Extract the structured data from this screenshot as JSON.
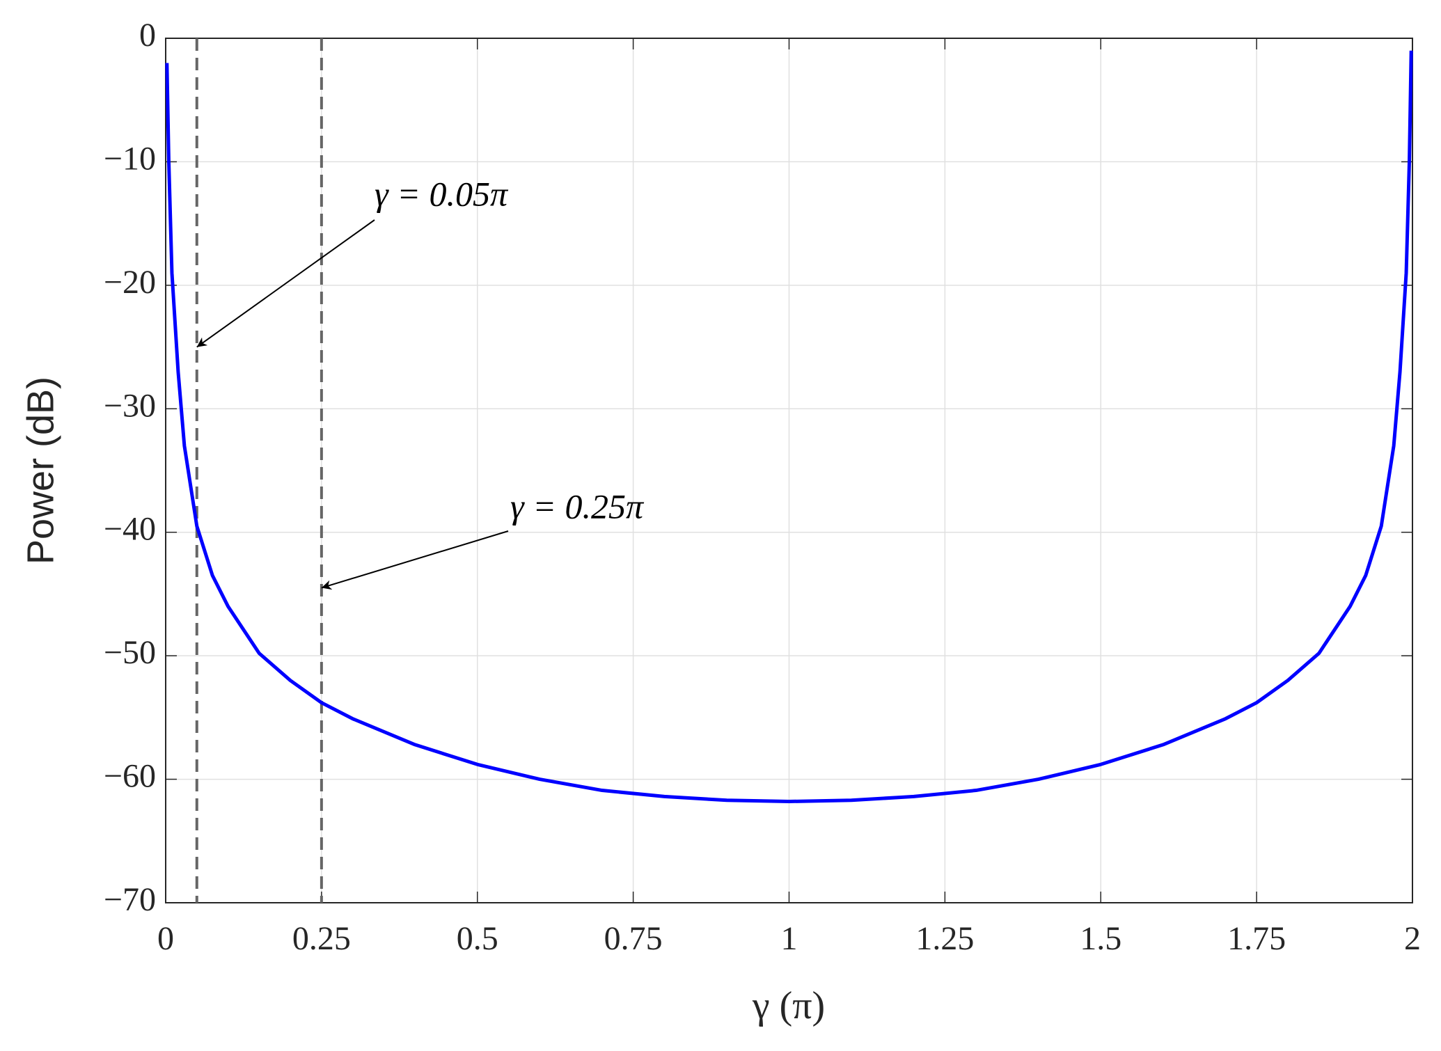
{
  "chart_data": {
    "type": "line",
    "x": [
      0.002,
      0.005,
      0.01,
      0.02,
      0.03,
      0.05,
      0.075,
      0.1,
      0.15,
      0.2,
      0.25,
      0.3,
      0.4,
      0.5,
      0.6,
      0.7,
      0.8,
      0.9,
      1.0,
      1.1,
      1.2,
      1.3,
      1.4,
      1.5,
      1.6,
      1.7,
      1.75,
      1.8,
      1.85,
      1.9,
      1.925,
      1.95,
      1.97,
      1.98,
      1.99,
      1.995,
      1.998
    ],
    "values": [
      -2,
      -10,
      -19,
      -27,
      -33,
      -39.5,
      -43.5,
      -46,
      -49.8,
      -52,
      -53.8,
      -55.1,
      -57.2,
      -58.8,
      -60,
      -60.9,
      -61.4,
      -61.7,
      -61.8,
      -61.7,
      -61.4,
      -60.9,
      -60,
      -58.8,
      -57.2,
      -55.1,
      -53.8,
      -52,
      -49.8,
      -46,
      -43.5,
      -39.5,
      -33,
      -27,
      -19,
      -10,
      -1
    ],
    "color": "#0000ff",
    "xlabel": "γ (π)",
    "ylabel": "Power (dB)",
    "xlim": [
      0,
      2
    ],
    "ylim": [
      -70,
      0
    ],
    "xticks": [
      0,
      0.25,
      0.5,
      0.75,
      1,
      1.25,
      1.5,
      1.75,
      2
    ],
    "yticks": [
      0,
      {
        "value": -10,
        "label": "−10"
      },
      {
        "value": -20,
        "label": "−20"
      },
      {
        "value": -30,
        "label": "−30"
      },
      {
        "value": -40,
        "label": "−40"
      },
      {
        "value": -50,
        "label": "−50"
      },
      {
        "value": -60,
        "label": "−60"
      },
      {
        "value": -70,
        "label": "−70"
      }
    ],
    "grid": true,
    "vlines": [
      0.05,
      0.25
    ],
    "annotations": [
      {
        "text": "γ = 0.05π",
        "x": 0.05,
        "y": -25
      },
      {
        "text": "γ = 0.25π",
        "x": 0.25,
        "y": -44.5
      }
    ]
  }
}
